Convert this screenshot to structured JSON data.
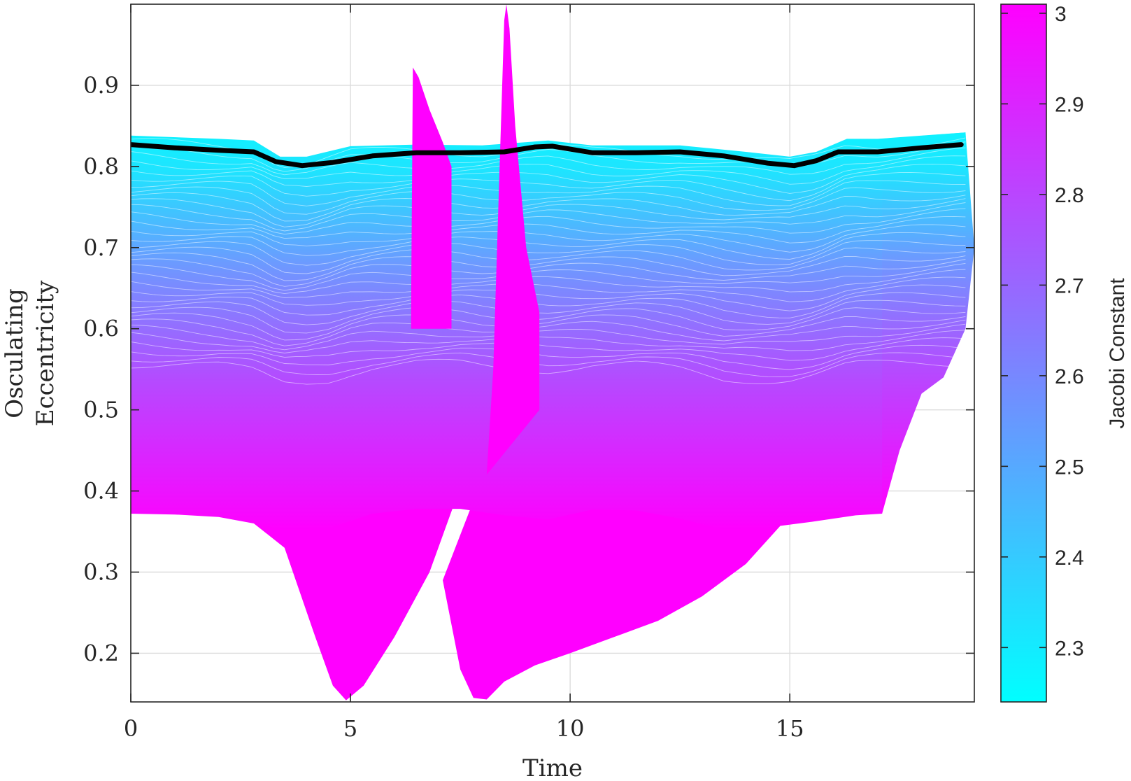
{
  "chart_data": {
    "type": "line",
    "description_text": "",
    "xlabel": "Time",
    "ylabel_lines": [
      "Osculating",
      "Eccentricity"
    ],
    "xlim": [
      0,
      19.2
    ],
    "ylim": [
      0.14,
      1.0
    ],
    "xticks": [
      0,
      5,
      10,
      15
    ],
    "yticks": [
      0.2,
      0.3,
      0.4,
      0.5,
      0.6,
      0.7,
      0.8,
      0.9
    ],
    "grid": true,
    "colormap": {
      "low": "#00ffff",
      "high": "#ff00ff"
    },
    "colorbar": {
      "label": "Jacobi Constant",
      "range": [
        2.24,
        3.01
      ],
      "ticks": [
        2.3,
        2.4,
        2.5,
        2.6,
        2.7,
        2.8,
        2.9,
        3
      ]
    },
    "highlight_series": {
      "name": "",
      "color": "#000000",
      "x": [
        0,
        1,
        2,
        2.8,
        3.3,
        3.9,
        4.6,
        5.5,
        6.5,
        7.5,
        8.5,
        9.2,
        9.6,
        10.5,
        11.5,
        12.5,
        13.5,
        14.5,
        15.1,
        15.6,
        16.1,
        17,
        18,
        18.9
      ],
      "y": [
        0.827,
        0.823,
        0.82,
        0.818,
        0.806,
        0.801,
        0.805,
        0.813,
        0.817,
        0.817,
        0.818,
        0.824,
        0.825,
        0.817,
        0.817,
        0.818,
        0.813,
        0.804,
        0.801,
        0.807,
        0.818,
        0.818,
        0.823,
        0.827
      ]
    },
    "family_upper_edge": {
      "x": [
        0,
        2,
        2.8,
        3.4,
        4,
        5,
        6.5,
        8,
        9.5,
        10.5,
        12.5,
        14,
        15,
        15.6,
        16.3,
        17,
        18,
        19
      ],
      "y": [
        0.838,
        0.834,
        0.832,
        0.812,
        0.812,
        0.825,
        0.827,
        0.826,
        0.832,
        0.826,
        0.826,
        0.818,
        0.812,
        0.818,
        0.834,
        0.834,
        0.838,
        0.842
      ]
    },
    "family_lower_edge": {
      "x": [
        0,
        1,
        2,
        2.8,
        3.5,
        4.5,
        5.5,
        6.5,
        7.5,
        8.5,
        9.5,
        10.5,
        11.5,
        12.5,
        13.5,
        14.5,
        15.5,
        16.5,
        17.1
      ],
      "y": [
        0.372,
        0.371,
        0.368,
        0.36,
        0.352,
        0.354,
        0.372,
        0.378,
        0.378,
        0.37,
        0.365,
        0.377,
        0.376,
        0.366,
        0.352,
        0.355,
        0.362,
        0.37,
        0.372
      ]
    },
    "low_jacobi_branch_1": {
      "x": [
        2.8,
        3.5,
        4.2,
        4.6,
        4.9,
        5.3,
        6,
        6.8,
        7.4
      ],
      "y": [
        0.36,
        0.33,
        0.22,
        0.16,
        0.142,
        0.16,
        0.22,
        0.3,
        0.39
      ]
    },
    "low_jacobi_branch_2": {
      "x": [
        7.1,
        7.5,
        7.8,
        8.1,
        8.5,
        9.2,
        10,
        11,
        12,
        13,
        14,
        15
      ],
      "y": [
        0.29,
        0.18,
        0.145,
        0.143,
        0.165,
        0.185,
        0.2,
        0.22,
        0.24,
        0.27,
        0.31,
        0.37
      ]
    },
    "spike_1": {
      "x": [
        6.38,
        6.42,
        6.55,
        6.8,
        7.1,
        7.3
      ],
      "y": [
        0.62,
        0.922,
        0.91,
        0.87,
        0.83,
        0.8
      ]
    },
    "spike_2": {
      "x": [
        8.25,
        8.5,
        8.55,
        8.62,
        8.75,
        9,
        9.3
      ],
      "y": [
        0.55,
        0.98,
        1.0,
        0.97,
        0.85,
        0.7,
        0.62
      ]
    },
    "right_tail": {
      "x": [
        17.1,
        17.5,
        18,
        18.5,
        19,
        19.2
      ],
      "y": [
        0.372,
        0.45,
        0.52,
        0.54,
        0.6,
        0.7
      ]
    }
  }
}
